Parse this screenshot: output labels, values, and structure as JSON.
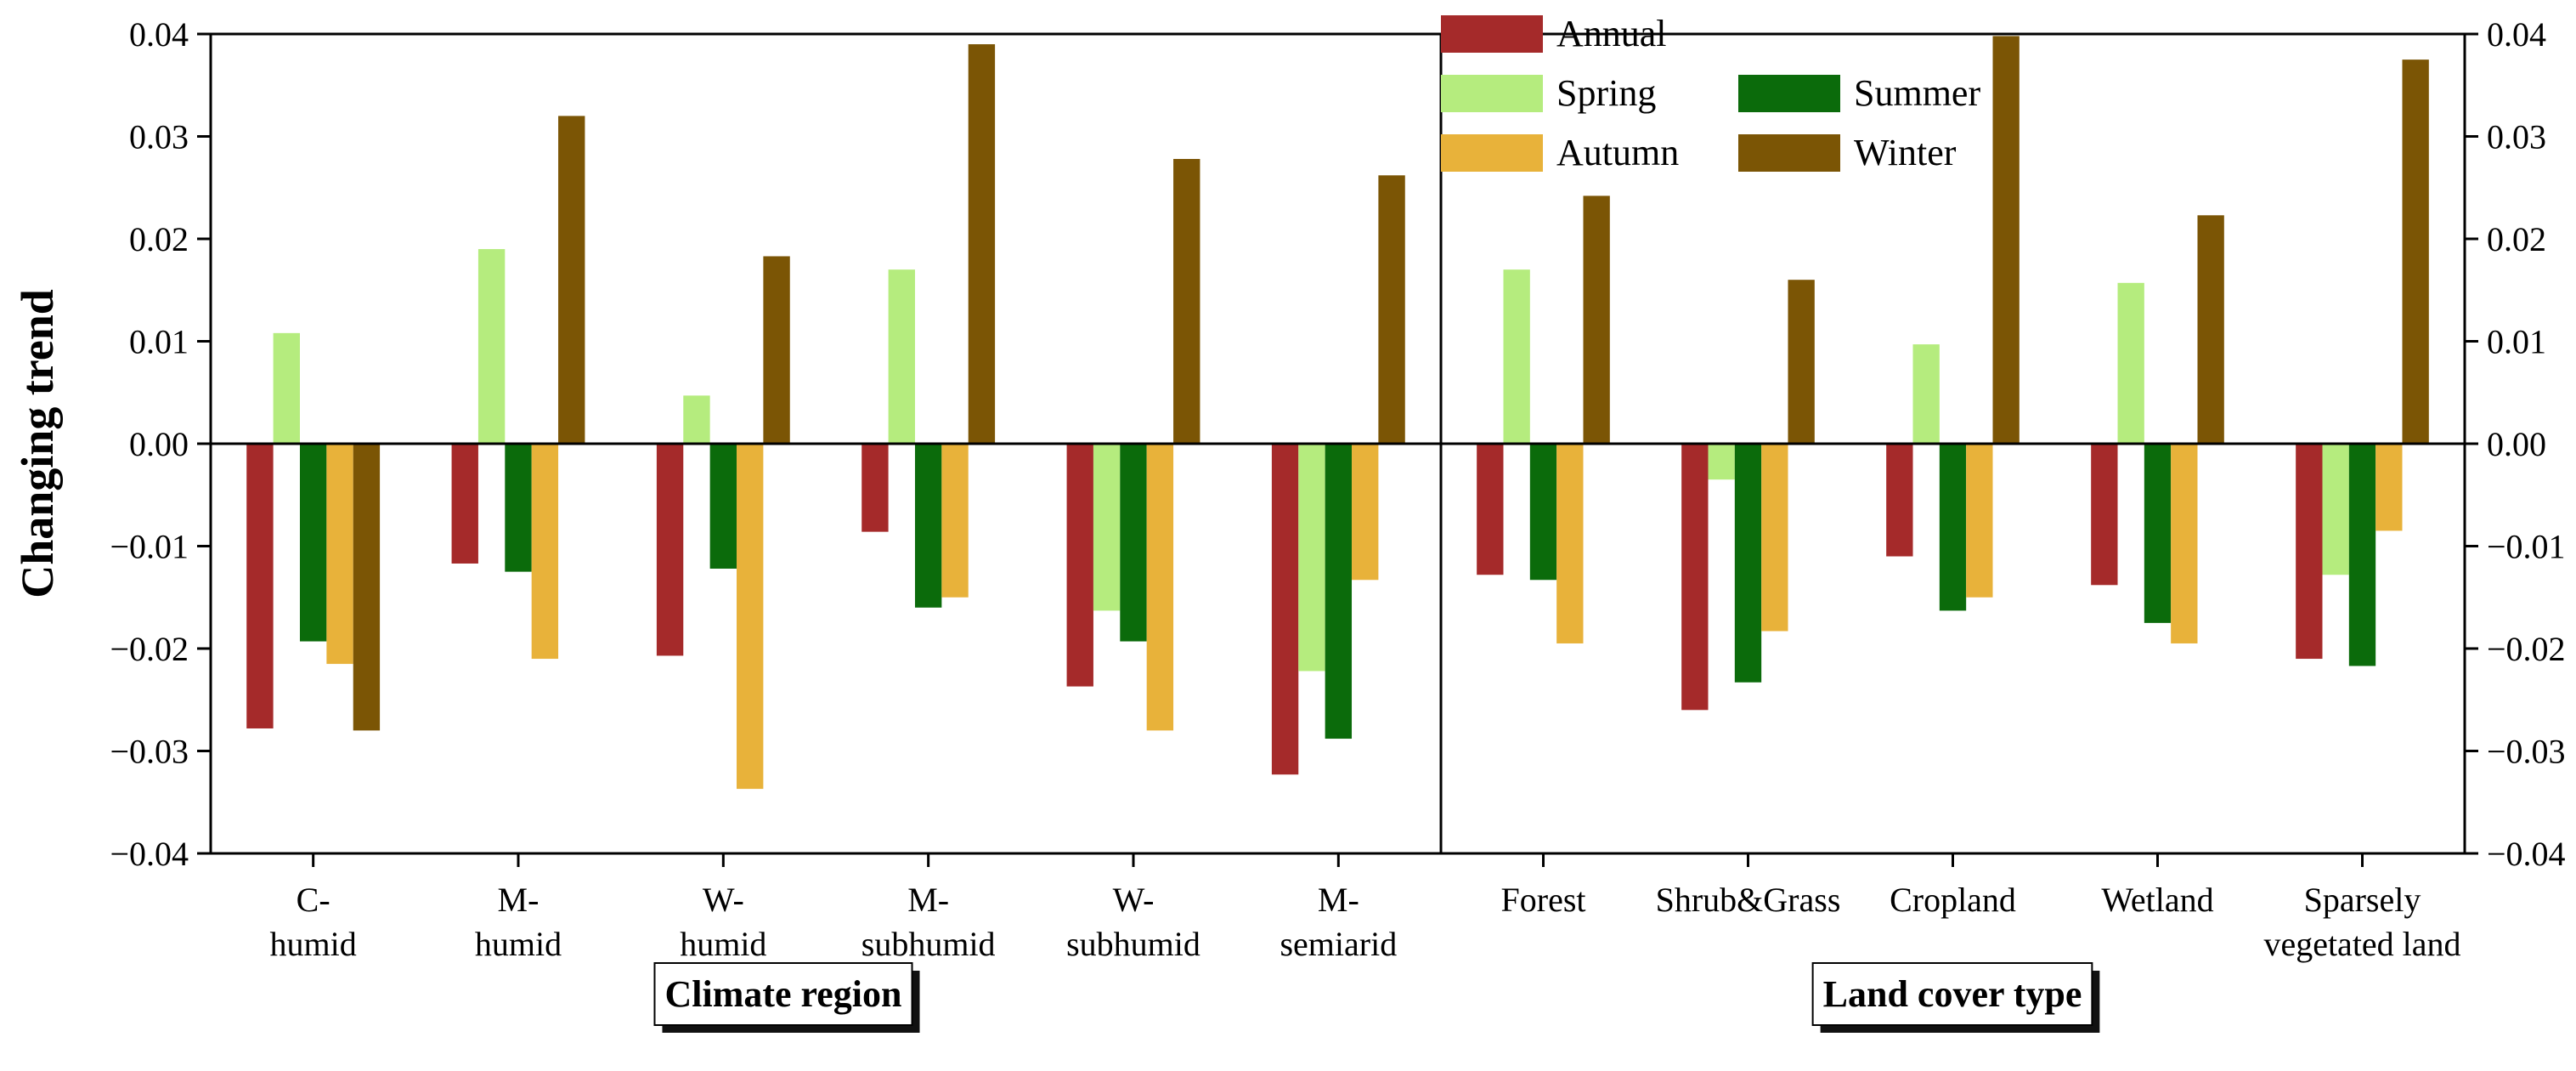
{
  "chart_data": {
    "type": "bar",
    "ylabel": "Changing trend",
    "ylim": [
      -0.04,
      0.04
    ],
    "yticks": [
      -0.04,
      -0.03,
      -0.02,
      -0.01,
      0.0,
      0.01,
      0.02,
      0.03,
      0.04
    ],
    "ytick_labels": [
      "−0.04",
      "−0.03",
      "−0.02",
      "−0.01",
      "0.00",
      "0.01",
      "0.02",
      "0.03",
      "0.04"
    ],
    "right_ytick_labels": [
      "−0.04",
      "−0.03",
      "−0.02",
      "−0.01",
      "0.00",
      "0.01",
      "0.02",
      "0.03",
      "0.04"
    ],
    "series_colors": {
      "Annual": "#a52a2a",
      "Spring": "#b5ec7e",
      "Summer": "#0b6b0b",
      "Autumn": "#e8b23a",
      "Winter": "#7b5505"
    },
    "legend": {
      "position": "top-center",
      "rows": [
        [
          "Annual"
        ],
        [
          "Spring",
          "Summer"
        ],
        [
          "Autumn",
          "Winter"
        ]
      ]
    },
    "panels": [
      {
        "title": "Climate region",
        "series_order": [
          "Annual",
          "Spring",
          "Summer",
          "Autumn",
          "Winter"
        ],
        "categories": [
          [
            "C-",
            "humid"
          ],
          [
            "M-",
            "humid"
          ],
          [
            "W-",
            "humid"
          ],
          [
            "M-",
            "subhumid"
          ],
          [
            "W-",
            "subhumid"
          ],
          [
            "M-",
            "semiarid"
          ]
        ],
        "series": [
          {
            "name": "Annual",
            "values": [
              -0.0278,
              -0.0117,
              -0.0207,
              -0.0086,
              -0.0237,
              -0.0323
            ]
          },
          {
            "name": "Spring",
            "values": [
              0.0108,
              0.019,
              0.0047,
              0.017,
              -0.0163,
              -0.0222
            ]
          },
          {
            "name": "Summer",
            "values": [
              -0.0193,
              -0.0125,
              -0.0122,
              -0.016,
              -0.0193,
              -0.0288
            ]
          },
          {
            "name": "Autumn",
            "values": [
              -0.0215,
              -0.021,
              -0.0337,
              -0.015,
              -0.028,
              -0.0133
            ]
          },
          {
            "name": "Winter",
            "values": [
              -0.028,
              0.032,
              0.0183,
              0.039,
              0.0278,
              0.0262
            ]
          }
        ]
      },
      {
        "title": "Land cover type",
        "series_order": [
          "Annual",
          "Spring",
          "Summer",
          "Autumn",
          "Winter"
        ],
        "categories": [
          [
            "Forest"
          ],
          [
            "Shrub&Grass"
          ],
          [
            "Cropland"
          ],
          [
            "Wetland"
          ],
          [
            "Sparsely",
            "vegetated land"
          ]
        ],
        "series": [
          {
            "name": "Annual",
            "values": [
              -0.0128,
              -0.026,
              -0.011,
              -0.0138,
              -0.021
            ]
          },
          {
            "name": "Spring",
            "values": [
              0.017,
              -0.0035,
              0.0097,
              0.0157,
              -0.0128
            ]
          },
          {
            "name": "Summer",
            "values": [
              -0.0133,
              -0.0233,
              -0.0163,
              -0.0175,
              -0.0217
            ]
          },
          {
            "name": "Autumn",
            "values": [
              -0.0195,
              -0.0183,
              -0.015,
              -0.0195,
              -0.0085
            ]
          },
          {
            "name": "Winter",
            "values": [
              0.0242,
              0.016,
              0.0398,
              0.0223,
              0.0375
            ]
          }
        ]
      }
    ]
  }
}
